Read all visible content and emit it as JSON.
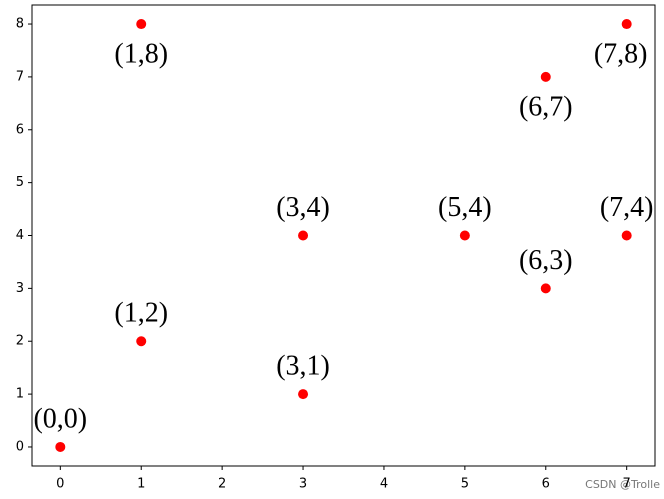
{
  "chart_data": {
    "type": "scatter",
    "x": [
      0,
      1,
      1,
      3,
      3,
      5,
      6,
      6,
      7,
      7
    ],
    "values": [
      0,
      2,
      8,
      1,
      4,
      4,
      3,
      7,
      4,
      8
    ],
    "point_labels": [
      "(0,0)",
      "(1,2)",
      "(1,8)",
      "(3,1)",
      "(3,4)",
      "(5,4)",
      "(6,3)",
      "(6,7)",
      "(7,4)",
      "(7,8)"
    ],
    "color": "#ff0000",
    "xlim": [
      -0.35,
      7.35
    ],
    "xticks": [
      0,
      1,
      2,
      3,
      4,
      5,
      6,
      7
    ],
    "ylim": [
      -0.36,
      8.36
    ],
    "yticks": [
      0,
      1,
      2,
      3,
      4,
      5,
      6,
      7,
      8
    ],
    "watermark": "CSDN @Trolle"
  }
}
